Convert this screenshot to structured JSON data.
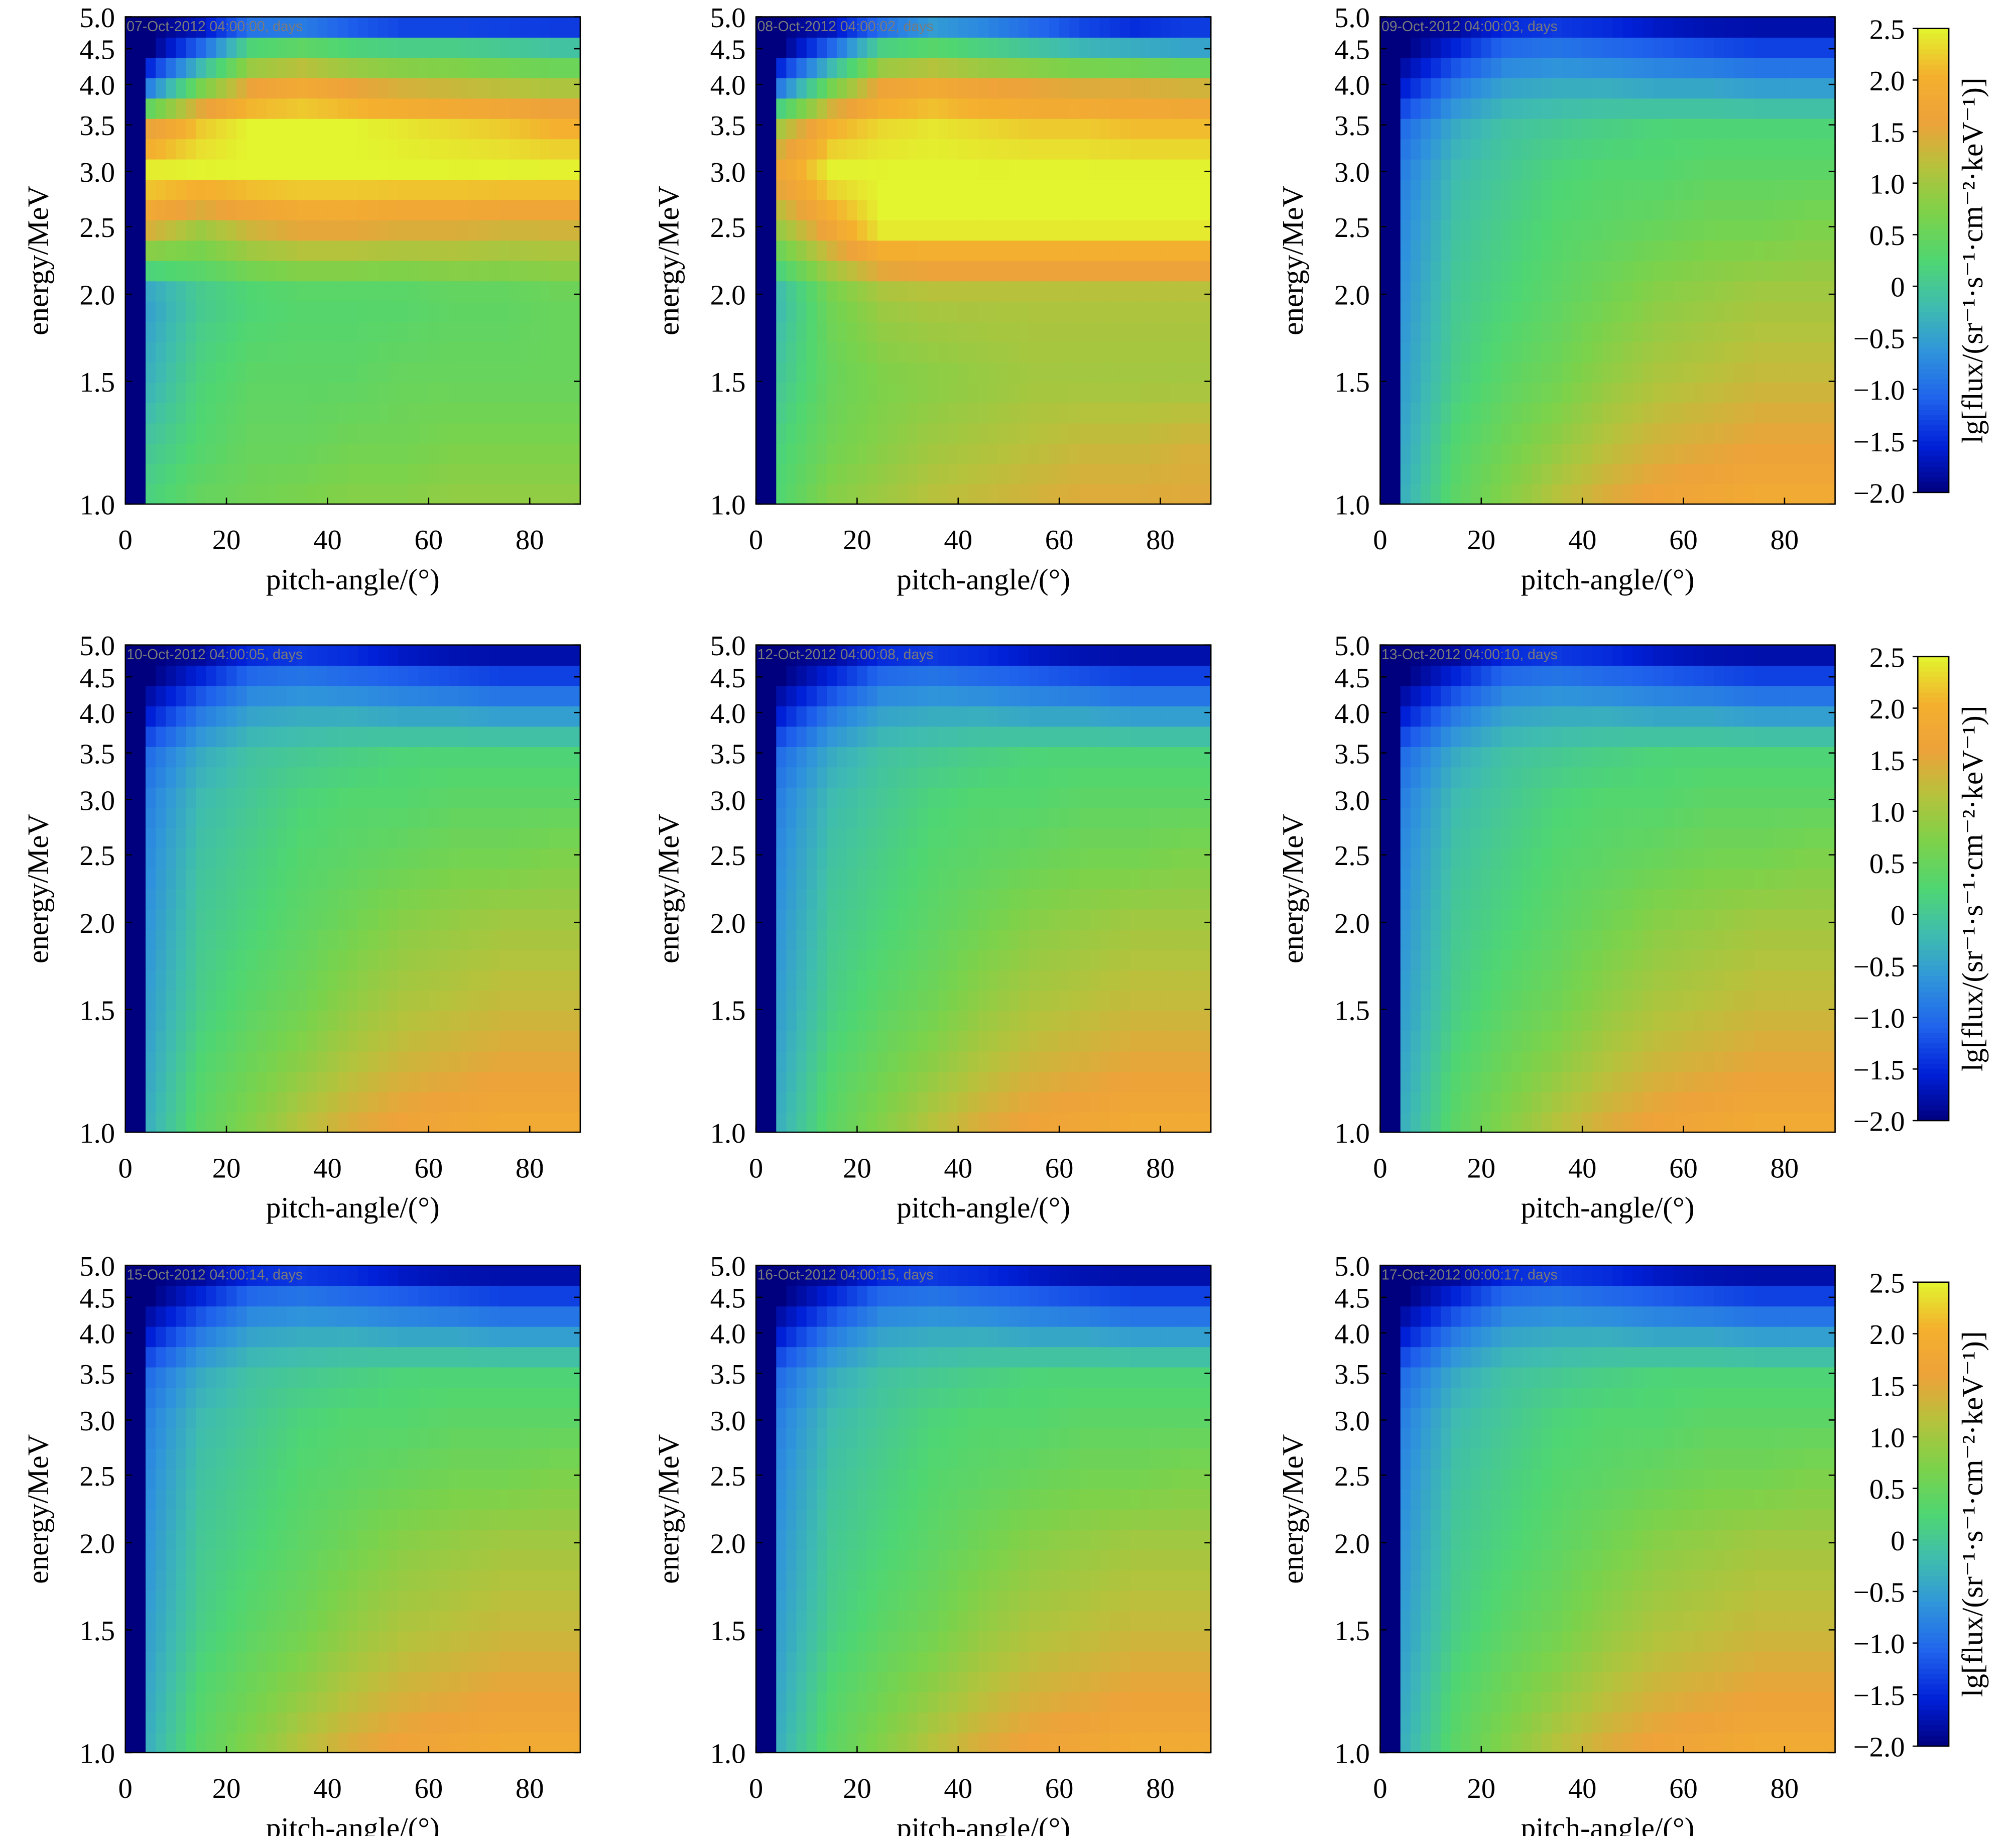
{
  "chart_data": {
    "type": "heatmap",
    "xlabel": "pitch-angle/(°)",
    "ylabel": "energy/MeV",
    "colorbar_label": "lg[flux/(sr⁻¹·s⁻¹·cm⁻²·keV⁻¹)]",
    "xlim": [
      0,
      90
    ],
    "ylim": [
      1.0,
      5.0
    ],
    "yscale": "log",
    "clim": [
      -2.0,
      2.5
    ],
    "x_ticks": [
      "0",
      "20",
      "40",
      "60",
      "80"
    ],
    "x_tick_values": [
      0,
      20,
      40,
      60,
      80
    ],
    "y_ticks": [
      "1.0",
      "1.5",
      "2.0",
      "2.5",
      "3.0",
      "3.5",
      "4.0",
      "4.5",
      "5.0"
    ],
    "y_tick_values": [
      1.0,
      1.5,
      2.0,
      2.5,
      3.0,
      3.5,
      4.0,
      4.5,
      5.0
    ],
    "colorbar_ticks": [
      "2.5",
      "2.0",
      "1.5",
      "1.0",
      "0.5",
      "0",
      "−0.5",
      "−1.0",
      "−1.5",
      "−2.0"
    ],
    "colorbar_tick_values": [
      2.5,
      2.0,
      1.5,
      1.0,
      0.5,
      0,
      -0.5,
      -1.0,
      -1.5,
      -2.0
    ],
    "colormap": [
      "#00007f",
      "#0020d8",
      "#1f62ec",
      "#2f93dc",
      "#3fbcb0",
      "#4fd672",
      "#7cd24a",
      "#b5c23c",
      "#eea23a",
      "#f4b02e",
      "#e2f52e"
    ],
    "loss_cone_pitch_angle": 4,
    "grid_energies": [
      1.0,
      1.2,
      1.5,
      2.0,
      2.5,
      3.0,
      3.5,
      4.0,
      4.5,
      5.0
    ],
    "grid_pitch_angles": [
      5,
      15,
      25,
      35,
      45,
      55,
      65,
      75,
      85
    ],
    "grids": {
      "storm1": [
        [
          0.2,
          0.5,
          0.6,
          0.7,
          0.8,
          0.8,
          0.9,
          0.9,
          0.9
        ],
        [
          0.0,
          0.3,
          0.5,
          0.5,
          0.6,
          0.6,
          0.7,
          0.7,
          0.7
        ],
        [
          -0.3,
          0.2,
          0.4,
          0.4,
          0.4,
          0.5,
          0.5,
          0.5,
          0.5
        ],
        [
          -0.5,
          0.0,
          0.2,
          0.3,
          0.3,
          0.3,
          0.4,
          0.4,
          0.5
        ],
        [
          1.5,
          1.0,
          1.4,
          1.6,
          1.6,
          1.5,
          1.5,
          1.4,
          1.4
        ],
        [
          2.5,
          2.5,
          2.5,
          2.5,
          2.5,
          2.5,
          2.5,
          2.5,
          2.5
        ],
        [
          1.5,
          2.2,
          2.5,
          2.5,
          2.5,
          2.4,
          2.3,
          2.2,
          2.0
        ],
        [
          -1.0,
          0.5,
          1.5,
          1.8,
          1.5,
          1.3,
          1.2,
          1.1,
          1.0
        ],
        [
          -2.0,
          -1.0,
          0.3,
          0.5,
          0.3,
          0.2,
          0.2,
          0.1,
          0.0
        ],
        [
          -2.0,
          -2.0,
          -1.5,
          -1.5,
          -1.8,
          -2.0,
          -2.0,
          -2.0,
          -2.0
        ]
      ],
      "storm2": [
        [
          0.3,
          0.8,
          1.0,
          1.2,
          1.3,
          1.4,
          1.5,
          1.5,
          1.5
        ],
        [
          0.2,
          0.6,
          0.8,
          1.0,
          1.1,
          1.2,
          1.3,
          1.3,
          1.4
        ],
        [
          0.0,
          0.5,
          0.7,
          0.8,
          0.9,
          1.0,
          1.0,
          1.0,
          1.0
        ],
        [
          -0.2,
          0.6,
          1.0,
          1.1,
          1.1,
          1.1,
          1.1,
          1.1,
          1.1
        ],
        [
          1.0,
          1.8,
          2.5,
          2.5,
          2.5,
          2.5,
          2.5,
          2.5,
          2.5
        ],
        [
          1.8,
          2.5,
          2.5,
          2.5,
          2.5,
          2.5,
          2.5,
          2.5,
          2.5
        ],
        [
          1.0,
          2.0,
          2.3,
          2.4,
          2.3,
          2.2,
          2.2,
          2.1,
          2.1
        ],
        [
          -1.0,
          0.5,
          1.6,
          1.8,
          1.6,
          1.5,
          1.4,
          1.4,
          1.3
        ],
        [
          -2.0,
          -1.0,
          0.2,
          0.4,
          0.2,
          0.0,
          -0.2,
          -0.3,
          -0.4
        ],
        [
          -2.0,
          -2.0,
          -1.5,
          -1.0,
          -1.2,
          -1.5,
          -1.8,
          -2.0,
          -1.8
        ]
      ],
      "quiet": [
        [
          -0.3,
          0.4,
          0.8,
          1.2,
          1.5,
          1.7,
          1.8,
          1.9,
          1.9
        ],
        [
          -0.4,
          0.3,
          0.6,
          0.9,
          1.2,
          1.4,
          1.5,
          1.6,
          1.6
        ],
        [
          -0.5,
          0.1,
          0.4,
          0.6,
          0.9,
          1.1,
          1.2,
          1.3,
          1.3
        ],
        [
          -0.6,
          0.0,
          0.2,
          0.4,
          0.6,
          0.8,
          0.9,
          1.0,
          1.0
        ],
        [
          -0.7,
          -0.1,
          0.1,
          0.3,
          0.4,
          0.5,
          0.6,
          0.6,
          0.7
        ],
        [
          -0.8,
          -0.2,
          0.0,
          0.2,
          0.3,
          0.3,
          0.4,
          0.4,
          0.4
        ],
        [
          -1.0,
          -0.4,
          -0.1,
          0.0,
          0.1,
          0.2,
          0.2,
          0.2,
          0.2
        ],
        [
          -1.6,
          -0.9,
          -0.5,
          -0.4,
          -0.4,
          -0.5,
          -0.5,
          -0.6,
          -0.6
        ],
        [
          -2.0,
          -1.5,
          -1.0,
          -0.9,
          -1.0,
          -1.1,
          -1.2,
          -1.3,
          -1.3
        ],
        [
          -2.0,
          -2.0,
          -1.7,
          -1.6,
          -1.7,
          -1.9,
          -2.0,
          -2.0,
          -2.0
        ]
      ]
    },
    "panels": [
      {
        "title": "07-Oct-2012 04:00:00, days",
        "grid": "storm1"
      },
      {
        "title": "08-Oct-2012 04:00:02, days",
        "grid": "storm2"
      },
      {
        "title": "09-Oct-2012 04:00:03, days",
        "grid": "quiet"
      },
      {
        "title": "10-Oct-2012 04:00:05, days",
        "grid": "quiet"
      },
      {
        "title": "12-Oct-2012 04:00:08, days",
        "grid": "quiet"
      },
      {
        "title": "13-Oct-2012 04:00:10, days",
        "grid": "quiet"
      },
      {
        "title": "15-Oct-2012 04:00:14, days",
        "grid": "quiet"
      },
      {
        "title": "16-Oct-2012 04:00:15, days",
        "grid": "quiet"
      },
      {
        "title": "17-Oct-2012 00:00:17, days",
        "grid": "quiet"
      }
    ]
  }
}
